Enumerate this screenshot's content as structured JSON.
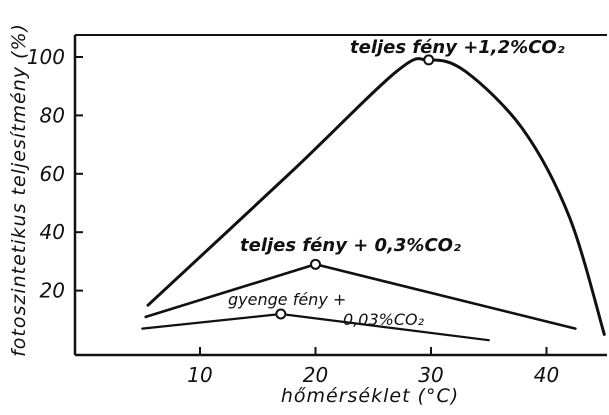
{
  "chart_data": {
    "type": "line",
    "title": "",
    "xlabel": "hőmérséklet (°C)",
    "ylabel": "fotoszintetikus teljesítmény (%)",
    "xlim": [
      3,
      45
    ],
    "ylim": [
      0,
      105
    ],
    "x_ticks": [
      10,
      20,
      30,
      40
    ],
    "y_ticks": [
      20,
      40,
      60,
      80,
      100
    ],
    "grid": false,
    "series": [
      {
        "name": "teljes fény + 1,2% CO₂",
        "x": [
          5.5,
          18,
          27,
          29.8,
          33,
          38,
          42,
          45
        ],
        "y": [
          15,
          61,
          95,
          99,
          95,
          75,
          45,
          5
        ],
        "peak": [
          29.8,
          99
        ],
        "label_display": "teljes fény +1,2%CO₂"
      },
      {
        "name": "teljes fény + 0,3% CO₂",
        "x": [
          5.3,
          20,
          42.5
        ],
        "y": [
          11,
          29,
          7
        ],
        "peak": [
          20,
          29
        ],
        "label_display": "teljes fény + 0,3%CO₂"
      },
      {
        "name": "gyenge fény + 0,03% CO₂",
        "x": [
          5,
          17,
          35
        ],
        "y": [
          7,
          12,
          3
        ],
        "peak": [
          17,
          12
        ],
        "label_display_line1": "gyenge fény +",
        "label_display_line2": "0,03%CO₂"
      }
    ]
  }
}
